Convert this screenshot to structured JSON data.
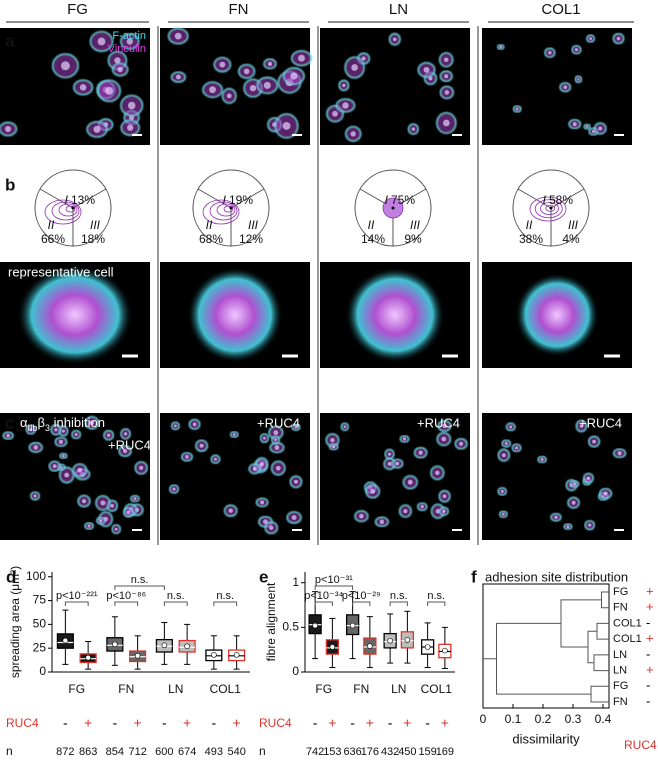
{
  "columns": [
    "FG",
    "FN",
    "LN",
    "COL1"
  ],
  "panel_a": {
    "letter": "a",
    "legend": [
      "F-actin",
      "Vinculin"
    ]
  },
  "panel_b": {
    "letter": "b",
    "roman": [
      "I",
      "II",
      "III"
    ],
    "pies": [
      [
        "13%",
        "66%",
        "18%"
      ],
      [
        "19%",
        "68%",
        "12%"
      ],
      [
        "75%",
        "14%",
        "9%"
      ],
      [
        "58%",
        "38%",
        "4%"
      ]
    ],
    "cell_label": "representative cell"
  },
  "panel_c": {
    "letter": "c",
    "label": [
      "α",
      "IIb",
      "β",
      "3",
      " inhibition"
    ],
    "treatment": "+RUC4"
  },
  "chart_data": [
    {
      "type": "box",
      "letter": "d",
      "ylabel": "spreading area (μm²)",
      "ylim": [
        0,
        105
      ],
      "yticks": [
        0,
        25,
        50,
        75,
        100
      ],
      "categories": [
        "FG",
        "FN",
        "LN",
        "COL1"
      ],
      "treatments": [
        "-",
        "+"
      ],
      "treatment_label": "RUC4",
      "n_label": "n",
      "colors": [
        "#1a1a1a",
        "#666666",
        "#bdbdbd",
        "#ffffff"
      ],
      "treated_color": "#e0312a",
      "boxes": [
        {
          "low": 8,
          "q1": 25,
          "median": 31,
          "q3": 40,
          "high": 65,
          "mean": 33,
          "n": 872
        },
        {
          "low": 3,
          "q1": 10,
          "median": 14,
          "q3": 19,
          "high": 32,
          "mean": 15,
          "n": 863
        },
        {
          "low": 7,
          "q1": 22,
          "median": 28,
          "q3": 36,
          "high": 58,
          "mean": 29,
          "n": 854
        },
        {
          "low": 3,
          "q1": 11,
          "median": 16,
          "q3": 22,
          "high": 38,
          "mean": 17,
          "n": 712
        },
        {
          "low": 8,
          "q1": 21,
          "median": 27,
          "q3": 34,
          "high": 52,
          "mean": 28,
          "n": 600
        },
        {
          "low": 8,
          "q1": 21,
          "median": 26,
          "q3": 33,
          "high": 50,
          "mean": 27,
          "n": 674
        },
        {
          "low": 3,
          "q1": 12,
          "median": 17,
          "q3": 23,
          "high": 38,
          "mean": 18,
          "n": 493
        },
        {
          "low": 3,
          "q1": 12,
          "median": 17,
          "q3": 23,
          "high": 38,
          "mean": 18,
          "n": 540
        }
      ],
      "brackets": [
        {
          "label": "p<10⁻²²¹",
          "boxes": [
            0,
            1
          ]
        },
        {
          "label": "n.s.",
          "boxes": [
            2,
            4
          ]
        },
        {
          "label": "p<10⁻⁸⁶",
          "boxes": [
            2,
            3
          ]
        },
        {
          "label": "n.s.",
          "boxes": [
            4,
            5
          ]
        },
        {
          "label": "n.s.",
          "boxes": [
            6,
            7
          ]
        }
      ]
    },
    {
      "type": "box",
      "letter": "e",
      "ylabel": "fibre alignment",
      "ylim": [
        0,
        1.12
      ],
      "yticks": [
        0,
        0.5,
        1
      ],
      "categories": [
        "FG",
        "FN",
        "LN",
        "COL1"
      ],
      "treatments": [
        "-",
        "+"
      ],
      "treatment_label": "RUC4",
      "n_label": "n",
      "colors": [
        "#1a1a1a",
        "#666666",
        "#bdbdbd",
        "#ffffff"
      ],
      "treated_color": "#e0312a",
      "boxes": [
        {
          "low": 0.15,
          "q1": 0.43,
          "median": 0.53,
          "q3": 0.64,
          "high": 0.9,
          "mean": 0.52,
          "n": 742
        },
        {
          "low": 0.05,
          "q1": 0.2,
          "median": 0.27,
          "q3": 0.36,
          "high": 0.6,
          "mean": 0.28,
          "n": 153
        },
        {
          "low": 0.15,
          "q1": 0.42,
          "median": 0.52,
          "q3": 0.64,
          "high": 0.9,
          "mean": 0.52,
          "n": 636
        },
        {
          "low": 0.05,
          "q1": 0.2,
          "median": 0.28,
          "q3": 0.38,
          "high": 0.62,
          "mean": 0.29,
          "n": 176
        },
        {
          "low": 0.1,
          "q1": 0.27,
          "median": 0.34,
          "q3": 0.43,
          "high": 0.65,
          "mean": 0.35,
          "n": 432
        },
        {
          "low": 0.1,
          "q1": 0.27,
          "median": 0.35,
          "q3": 0.45,
          "high": 0.68,
          "mean": 0.36,
          "n": 450
        },
        {
          "low": 0.05,
          "q1": 0.2,
          "median": 0.28,
          "q3": 0.36,
          "high": 0.55,
          "mean": 0.28,
          "n": 159
        },
        {
          "low": 0.04,
          "q1": 0.16,
          "median": 0.23,
          "q3": 0.31,
          "high": 0.5,
          "mean": 0.24,
          "n": 169
        }
      ],
      "brackets": [
        {
          "label": "p<10⁻³⁴",
          "boxes": [
            0,
            1
          ]
        },
        {
          "label": "p<10⁻³¹",
          "boxes": [
            0,
            2
          ]
        },
        {
          "label": "p<10⁻²⁹",
          "boxes": [
            2,
            3
          ]
        },
        {
          "label": "n.s.",
          "boxes": [
            4,
            5
          ]
        },
        {
          "label": "n.s.",
          "boxes": [
            6,
            7
          ]
        }
      ]
    },
    {
      "type": "dendrogram",
      "letter": "f",
      "title": "adhesion site distribution",
      "xlabel": "dissimilarity",
      "xlim": [
        0,
        0.42
      ],
      "xticks": [
        0,
        0.1,
        0.2,
        0.3,
        0.4
      ],
      "treatment_label": "RUC4",
      "treated_color": "#e0312a",
      "leaves": [
        {
          "name": "FG",
          "treatment": "+"
        },
        {
          "name": "FN",
          "treatment": "+"
        },
        {
          "name": "COL1",
          "treatment": "-"
        },
        {
          "name": "COL1",
          "treatment": "+"
        },
        {
          "name": "LN",
          "treatment": "-"
        },
        {
          "name": "LN",
          "treatment": "+"
        },
        {
          "name": "FG",
          "treatment": "-"
        },
        {
          "name": "FN",
          "treatment": "-"
        }
      ],
      "merges": [
        [
          4,
          5,
          0.37
        ],
        [
          2,
          3,
          0.38
        ],
        [
          8,
          9,
          0.35
        ],
        [
          0,
          1,
          0.395
        ],
        [
          10,
          11,
          0.26
        ],
        [
          6,
          7,
          0.36
        ],
        [
          12,
          13,
          0.045
        ]
      ]
    }
  ]
}
